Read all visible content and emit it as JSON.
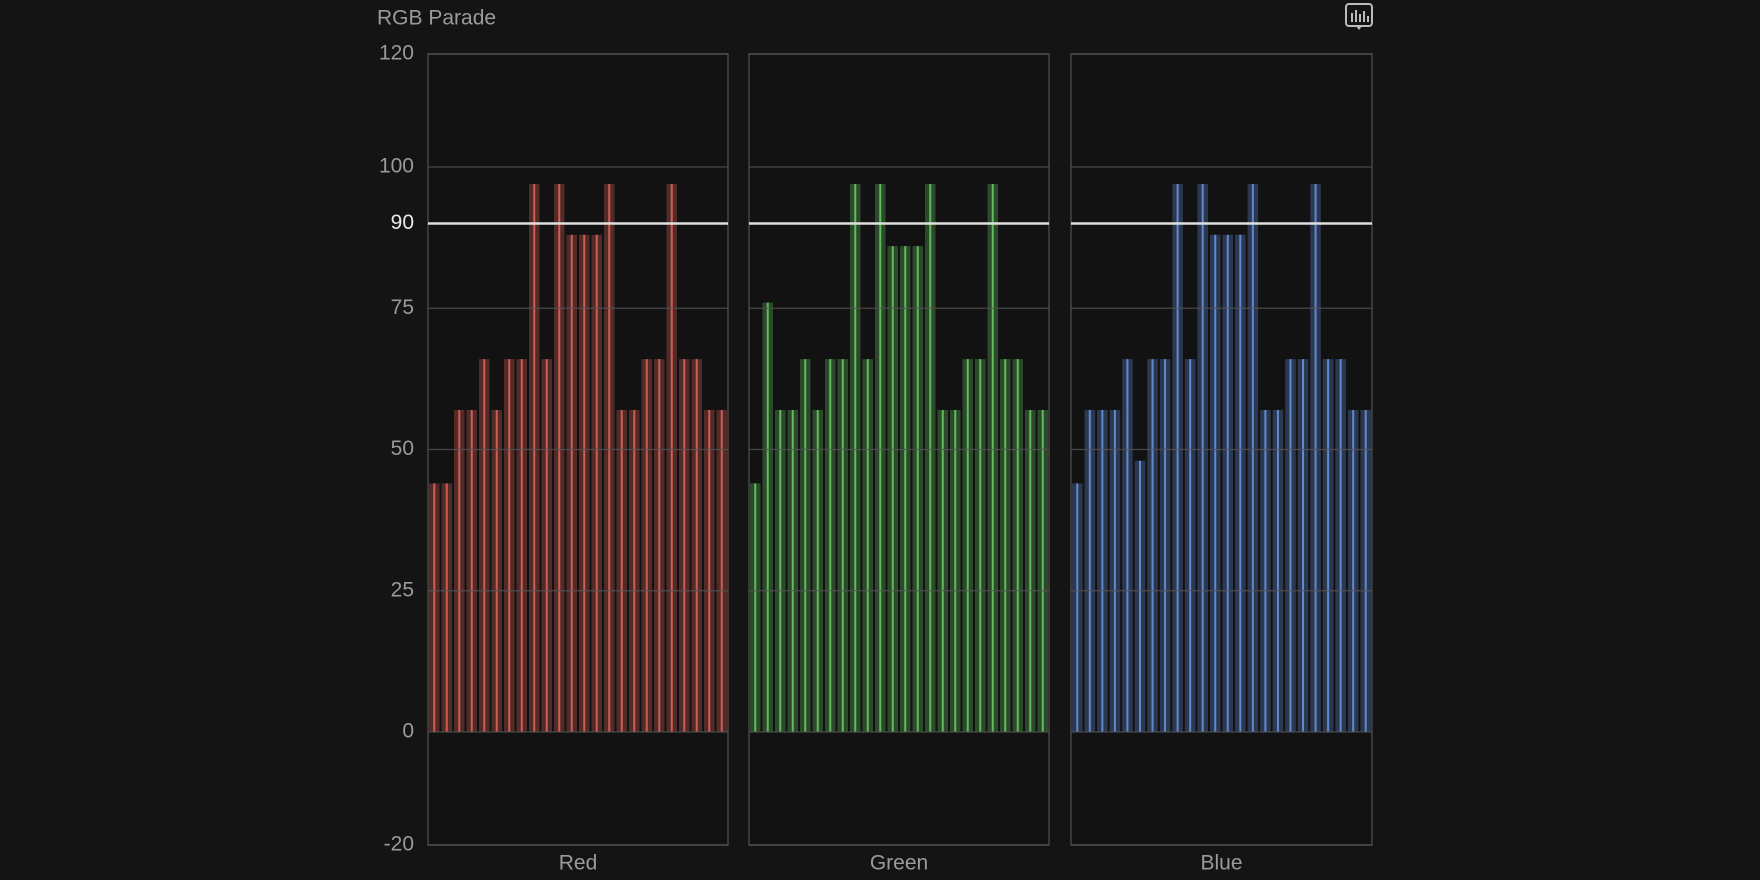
{
  "chart_data": {
    "type": "parade",
    "title": "RGB Parade",
    "ylim": [
      -20,
      120
    ],
    "yticks": [
      -20,
      0,
      25,
      50,
      75,
      90,
      100,
      120
    ],
    "highlight": 90,
    "grid": true,
    "series": [
      {
        "name": "Red",
        "color": "#ef6a62",
        "values": [
          44,
          44,
          57,
          57,
          66,
          57,
          66,
          66,
          97,
          66,
          97,
          88,
          88,
          88,
          97,
          57,
          57,
          66,
          66,
          97,
          66,
          66,
          57,
          57
        ]
      },
      {
        "name": "Green",
        "color": "#6fd86a",
        "values": [
          44,
          76,
          57,
          57,
          66,
          57,
          66,
          66,
          97,
          66,
          97,
          86,
          86,
          86,
          97,
          57,
          57,
          66,
          66,
          97,
          66,
          66,
          57,
          57
        ]
      },
      {
        "name": "Blue",
        "color": "#6f9cf0",
        "values": [
          44,
          57,
          57,
          57,
          66,
          48,
          66,
          66,
          97,
          66,
          97,
          88,
          88,
          88,
          97,
          57,
          57,
          66,
          66,
          97,
          66,
          66,
          57,
          57
        ]
      }
    ]
  }
}
